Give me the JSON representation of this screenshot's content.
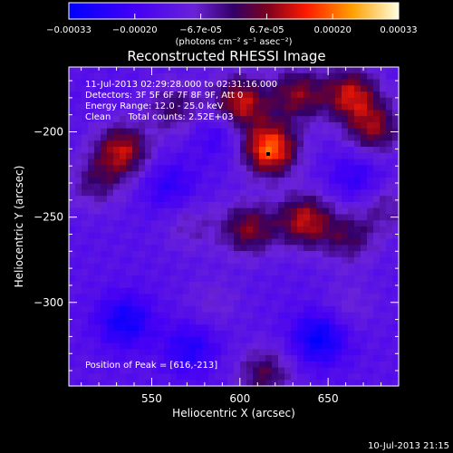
{
  "chart_data": {
    "type": "heatmap",
    "title": "Reconstructed RHESSI Image",
    "xlabel": "Heliocentric X (arcsec)",
    "ylabel": "Heliocentric Y (arcsec)",
    "xlim": [
      503,
      690
    ],
    "ylim": [
      -349,
      -162
    ],
    "xticks": [
      550,
      600,
      650
    ],
    "yticks": [
      -200,
      -250,
      -300
    ],
    "colorbar": {
      "ticks": [
        "-0.00033",
        "-0.00020",
        "-6.7e-05",
        "6.7e-05",
        "0.00020",
        "0.00033"
      ],
      "unit_text": "(photons cm⁻² s⁻¹ asec⁻²)",
      "min": -0.00033,
      "max": 0.00033
    },
    "info_lines": [
      "11-Jul-2013 02:29:28.000 to 02:31:16.000",
      "Detectors: 3F 5F 6F 7F 8F 9F, Att 0",
      "Energy Range: 12.0 - 25.0 keV",
      "Clean      Total counts: 2.52E+03"
    ],
    "peak_label": "Position of Peak = [616,-213]",
    "peak": [
      616,
      -213
    ],
    "sources": [
      {
        "x": 617,
        "y": -210,
        "amp": 0.00033
      },
      {
        "x": 600,
        "y": -183,
        "amp": 0.00026
      },
      {
        "x": 633,
        "y": -178,
        "amp": 0.0002
      },
      {
        "x": 663,
        "y": -178,
        "amp": 0.00024
      },
      {
        "x": 676,
        "y": -198,
        "amp": 0.0002
      },
      {
        "x": 533,
        "y": -211,
        "amp": 0.00024
      },
      {
        "x": 518,
        "y": -230,
        "amp": 0.00012
      },
      {
        "x": 563,
        "y": -186,
        "amp": 0.00014
      },
      {
        "x": 605,
        "y": -257,
        "amp": 0.0002
      },
      {
        "x": 637,
        "y": -252,
        "amp": 0.00024
      },
      {
        "x": 662,
        "y": -262,
        "amp": 0.00014
      },
      {
        "x": 572,
        "y": -255,
        "amp": 8e-05
      },
      {
        "x": 683,
        "y": -244,
        "amp": 0.0001
      },
      {
        "x": 585,
        "y": -300,
        "amp": 6e-05
      },
      {
        "x": 661,
        "y": -302,
        "amp": 6e-05
      },
      {
        "x": 614,
        "y": -342,
        "amp": 0.00016
      },
      {
        "x": 535,
        "y": -311,
        "amp": -0.00016
      },
      {
        "x": 645,
        "y": -321,
        "amp": -0.00018
      },
      {
        "x": 572,
        "y": -327,
        "amp": -0.00012
      },
      {
        "x": 666,
        "y": -227,
        "amp": -0.0001
      },
      {
        "x": 560,
        "y": -232,
        "amp": -0.0001
      },
      {
        "x": 588,
        "y": -200,
        "amp": -9e-05
      }
    ]
  },
  "timestamp": "10-Jul-2013 21:15",
  "colors": {
    "background": "#000000",
    "text": "#ffffff",
    "axes": "#ffffff"
  }
}
